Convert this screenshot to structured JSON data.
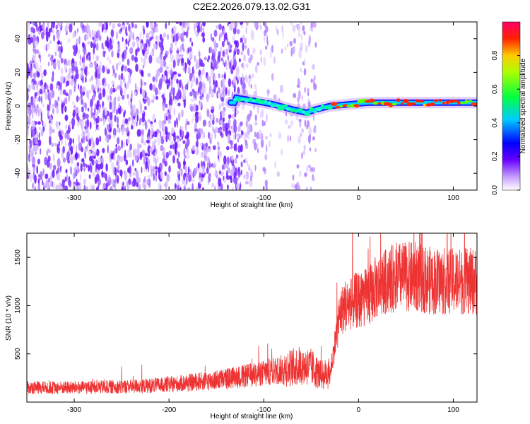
{
  "chart_data": [
    {
      "type": "heatmap",
      "title": "C2E2.2026.079.13.02.G31",
      "xlabel": "Height of straight line (km)",
      "ylabel": "Frequency (Hz)",
      "xlim": [
        -350,
        125
      ],
      "ylim": [
        -50,
        50
      ],
      "xticks": [
        -300,
        -200,
        -100,
        0,
        100
      ],
      "yticks": [
        -40,
        -20,
        0,
        20,
        40
      ],
      "colorbar": {
        "label": "Normalized spectral amplitude",
        "range": [
          0,
          1
        ],
        "ticks": [
          "0.0",
          "0.2",
          "0.4",
          "0.6",
          "0.8"
        ]
      },
      "signal_track": {
        "description_points_km_hz": [
          [
            -130,
            5
          ],
          [
            -110,
            3
          ],
          [
            -90,
            1
          ],
          [
            -70,
            -2
          ],
          [
            -55,
            -4
          ],
          [
            -45,
            -2
          ],
          [
            -30,
            0
          ],
          [
            -10,
            1
          ],
          [
            10,
            2
          ],
          [
            40,
            2
          ],
          [
            80,
            2
          ],
          [
            125,
            2
          ]
        ],
        "peak_amplitude_region_km": [
          40,
          110
        ]
      },
      "noise_region_km": [
        -350,
        -45
      ]
    },
    {
      "type": "line",
      "title": "",
      "xlabel": "Height of straight line (km)",
      "ylabel": "SNR (10 * v/v)",
      "xlim": [
        -350,
        125
      ],
      "ylim": [
        0,
        1750
      ],
      "xticks": [
        -300,
        -200,
        -100,
        0,
        100
      ],
      "yticks": [
        500,
        1000,
        1500
      ],
      "series": [
        {
          "name": "SNR",
          "color": "#ee3333",
          "x": [
            -350,
            -300,
            -250,
            -200,
            -150,
            -120,
            -100,
            -80,
            -60,
            -50,
            -40,
            -30,
            -25,
            -20,
            -15,
            -10,
            -5,
            0,
            10,
            20,
            30,
            40,
            60,
            80,
            100,
            125
          ],
          "y": [
            150,
            150,
            160,
            180,
            230,
            270,
            300,
            340,
            380,
            360,
            280,
            300,
            600,
            900,
            1000,
            1000,
            1050,
            1050,
            1100,
            1200,
            1250,
            1300,
            1300,
            1250,
            1250,
            1250
          ]
        }
      ]
    }
  ]
}
